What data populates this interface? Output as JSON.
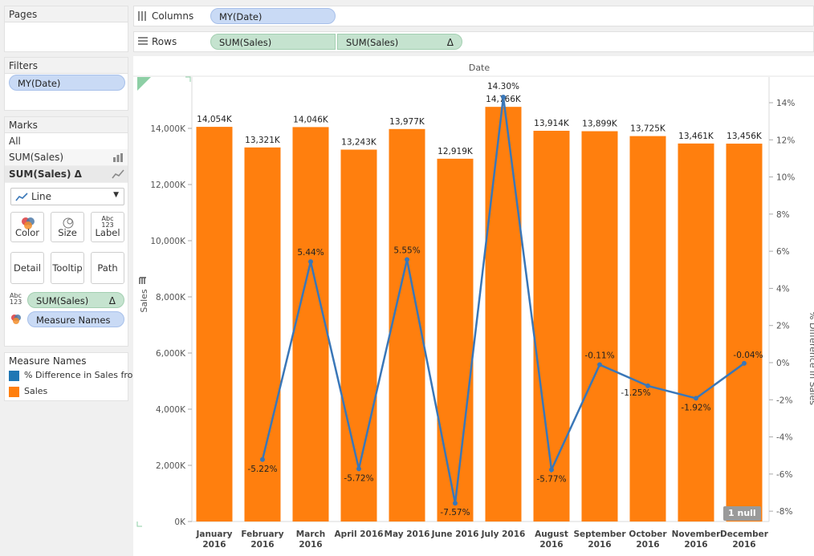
{
  "pages": {
    "title": "Pages"
  },
  "filters": {
    "title": "Filters",
    "items": [
      "MY(Date)"
    ]
  },
  "marks": {
    "title": "Marks",
    "all": "All",
    "layers": [
      {
        "label": "SUM(Sales)",
        "icon": "bar-chart-icon"
      },
      {
        "label": "SUM(Sales) Δ",
        "icon": "line-chart-icon"
      }
    ],
    "mark_type": "Line",
    "buttons": {
      "color": "Color",
      "size": "Size",
      "label": "Label",
      "detail": "Detail",
      "tooltip": "Tooltip",
      "path": "Path"
    },
    "label_icon_text": "Abc 123",
    "label_icon_line1": "Abc",
    "label_icon_line2": "123",
    "fields": [
      {
        "label": "SUM(Sales)",
        "delta": "Δ",
        "icon_line1": "Abc",
        "icon_line2": "123"
      },
      {
        "label": "Measure Names"
      }
    ]
  },
  "legend": {
    "title": "Measure Names",
    "items": [
      {
        "label": "% Difference in Sales fro..",
        "color": "#1f77b4"
      },
      {
        "label": "Sales",
        "color": "#ff7f0e"
      }
    ]
  },
  "columns": {
    "label": "Columns",
    "pills": [
      "MY(Date)"
    ]
  },
  "rows": {
    "label": "Rows",
    "pills": [
      "SUM(Sales)",
      "SUM(Sales)"
    ],
    "delta": "Δ"
  },
  "null_badge": "1 null",
  "colors": {
    "bar": "#ff7f0e",
    "line": "#3a77b8"
  },
  "chart_data": {
    "type": "bar",
    "header": "Date",
    "ylabel": "Sales",
    "y2label": "% Difference in Sales",
    "ylim": [
      0,
      15000
    ],
    "y2lim": [
      -9,
      15
    ],
    "categories": [
      [
        "January",
        "2016"
      ],
      [
        "February",
        "2016"
      ],
      [
        "March",
        "2016"
      ],
      [
        "April 2016",
        ""
      ],
      [
        "May 2016",
        ""
      ],
      [
        "June 2016",
        ""
      ],
      [
        "July 2016",
        ""
      ],
      [
        "August",
        "2016"
      ],
      [
        "September",
        "2016"
      ],
      [
        "October",
        "2016"
      ],
      [
        "November",
        "2016"
      ],
      [
        "December",
        "2016"
      ]
    ],
    "yticks": [
      {
        "v": 0,
        "label": "0K"
      },
      {
        "v": 2000,
        "label": "2,000K"
      },
      {
        "v": 4000,
        "label": "4,000K"
      },
      {
        "v": 6000,
        "label": "6,000K"
      },
      {
        "v": 8000,
        "label": "8,000K"
      },
      {
        "v": 10000,
        "label": "10,000K"
      },
      {
        "v": 12000,
        "label": "12,000K"
      },
      {
        "v": 14000,
        "label": "14,000K"
      }
    ],
    "y2ticks": [
      {
        "v": -8,
        "label": "-8%"
      },
      {
        "v": -6,
        "label": "-6%"
      },
      {
        "v": -4,
        "label": "-4%"
      },
      {
        "v": -2,
        "label": "-2%"
      },
      {
        "v": 0,
        "label": "0%"
      },
      {
        "v": 2,
        "label": "2%"
      },
      {
        "v": 4,
        "label": "4%"
      },
      {
        "v": 6,
        "label": "6%"
      },
      {
        "v": 8,
        "label": "8%"
      },
      {
        "v": 10,
        "label": "10%"
      },
      {
        "v": 12,
        "label": "12%"
      },
      {
        "v": 14,
        "label": "14%"
      }
    ],
    "series": [
      {
        "name": "Sales",
        "kind": "bar",
        "values": [
          14054,
          13321,
          14046,
          13243,
          13977,
          12919,
          14766,
          13914,
          13899,
          13725,
          13461,
          13456
        ],
        "labels": [
          "14,054K",
          "13,321K",
          "14,046K",
          "13,243K",
          "13,977K",
          "12,919K",
          "14,766K",
          "13,914K",
          "13,899K",
          "13,725K",
          "13,461K",
          "13,456K"
        ]
      },
      {
        "name": "% Difference in Sales",
        "kind": "line",
        "values": [
          null,
          -5.22,
          5.44,
          -5.72,
          5.55,
          -7.57,
          14.3,
          -5.77,
          -0.11,
          -1.25,
          -1.92,
          -0.04
        ],
        "labels": [
          "",
          "-5.22%",
          "5.44%",
          "-5.72%",
          "5.55%",
          "-7.57%",
          "14.30%",
          "-5.77%",
          "-0.11%",
          "-1.25%",
          "-1.92%",
          "-0.04%"
        ]
      }
    ]
  }
}
